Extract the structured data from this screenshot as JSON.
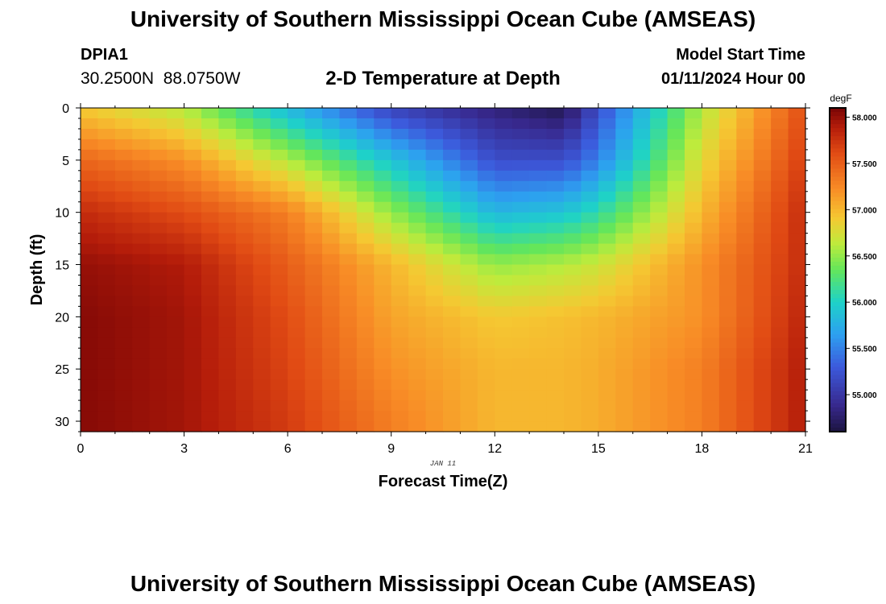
{
  "header": {
    "title": "University of Southern Mississippi Ocean Cube (AMSEAS)",
    "station_id": "DPIA1",
    "coordinates": "30.2500N  88.0750W",
    "subtitle": "2-D Temperature at Depth",
    "model_start_label": "Model Start Time",
    "model_start_value": "01/11/2024 Hour 00"
  },
  "footer": {
    "title": "University of Southern Mississippi Ocean Cube (AMSEAS)"
  },
  "chart_data": {
    "type": "heatmap",
    "title": "2-D Temperature at Depth",
    "xlabel": "Forecast Time(Z)",
    "ylabel": "Depth (ft)",
    "xlim": [
      0,
      21
    ],
    "ylim": [
      0,
      31
    ],
    "x_ticks": [
      0,
      3,
      6,
      9,
      12,
      15,
      18,
      21
    ],
    "y_ticks": [
      0,
      5,
      10,
      15,
      20,
      25,
      30
    ],
    "date_annotation": "JAN 11",
    "colorbar": {
      "units": "degF",
      "range": [
        54.6,
        58.1
      ],
      "ticks": [
        {
          "value": 55.0,
          "label": "55.000"
        },
        {
          "value": 55.5,
          "label": "55.500"
        },
        {
          "value": 56.0,
          "label": "56.000"
        },
        {
          "value": 56.5,
          "label": "56.500"
        },
        {
          "value": 57.0,
          "label": "57.000"
        },
        {
          "value": 57.5,
          "label": "57.500"
        },
        {
          "value": 58.0,
          "label": "58.000"
        }
      ]
    },
    "depth_levels_ft": [
      0,
      5,
      10,
      15,
      20,
      25,
      30
    ],
    "series": [
      {
        "time": 0,
        "values": [
          56.9,
          57.45,
          57.8,
          58.0,
          58.05,
          58.05,
          58.05
        ]
      },
      {
        "time": 3,
        "values": [
          56.6,
          57.2,
          57.6,
          57.9,
          57.95,
          57.95,
          57.95
        ]
      },
      {
        "time": 6,
        "values": [
          55.8,
          56.6,
          57.3,
          57.5,
          57.6,
          57.65,
          57.7
        ]
      },
      {
        "time": 9,
        "values": [
          55.1,
          55.9,
          56.5,
          57.0,
          57.1,
          57.2,
          57.3
        ]
      },
      {
        "time": 12,
        "values": [
          54.8,
          55.2,
          55.8,
          56.5,
          56.9,
          57.0,
          57.0
        ]
      },
      {
        "time": 14,
        "values": [
          54.65,
          55.2,
          55.9,
          56.6,
          56.95,
          57.0,
          57.0
        ]
      },
      {
        "time": 15,
        "values": [
          55.2,
          55.5,
          56.1,
          56.7,
          57.0,
          57.05,
          57.05
        ]
      },
      {
        "time": 18,
        "values": [
          56.6,
          56.8,
          57.0,
          57.2,
          57.2,
          57.3,
          57.3
        ]
      },
      {
        "time": 21,
        "values": [
          57.6,
          57.7,
          57.8,
          57.8,
          57.85,
          57.9,
          57.9
        ]
      }
    ]
  }
}
